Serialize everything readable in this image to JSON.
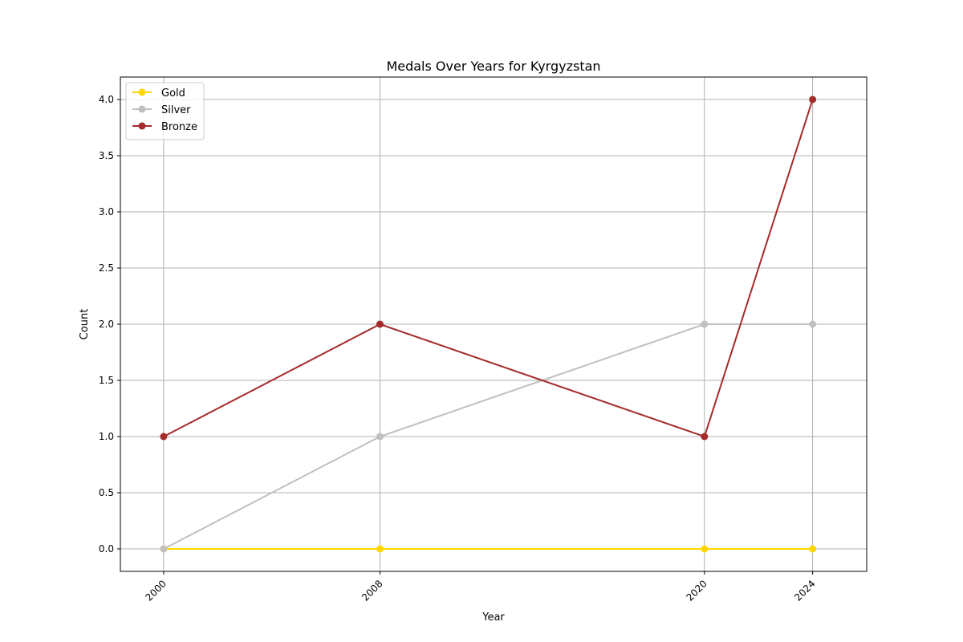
{
  "chart_data": {
    "type": "line",
    "title": "Medals Over Years for Kyrgyzstan",
    "xlabel": "Year",
    "ylabel": "Count",
    "x": [
      2000,
      2008,
      2020,
      2024
    ],
    "x_tick_labels": [
      "2000",
      "2008",
      "2020",
      "2024"
    ],
    "y_ticks": [
      0.0,
      0.5,
      1.0,
      1.5,
      2.0,
      2.5,
      3.0,
      3.5,
      4.0
    ],
    "y_tick_labels": [
      "0.0",
      "0.5",
      "1.0",
      "1.5",
      "2.0",
      "2.5",
      "3.0",
      "3.5",
      "4.0"
    ],
    "xlim": [
      1998.4,
      2026.0
    ],
    "ylim": [
      -0.2,
      4.2
    ],
    "grid": true,
    "legend_position": "top-left",
    "series": [
      {
        "name": "Gold",
        "color": "#FFD700",
        "values": [
          0,
          0,
          0,
          0
        ]
      },
      {
        "name": "Silver",
        "color": "#C0C0C0",
        "values": [
          0,
          1,
          2,
          2
        ]
      },
      {
        "name": "Bronze",
        "color": "#A52A2A",
        "values": [
          1,
          2,
          1,
          4
        ]
      }
    ]
  }
}
